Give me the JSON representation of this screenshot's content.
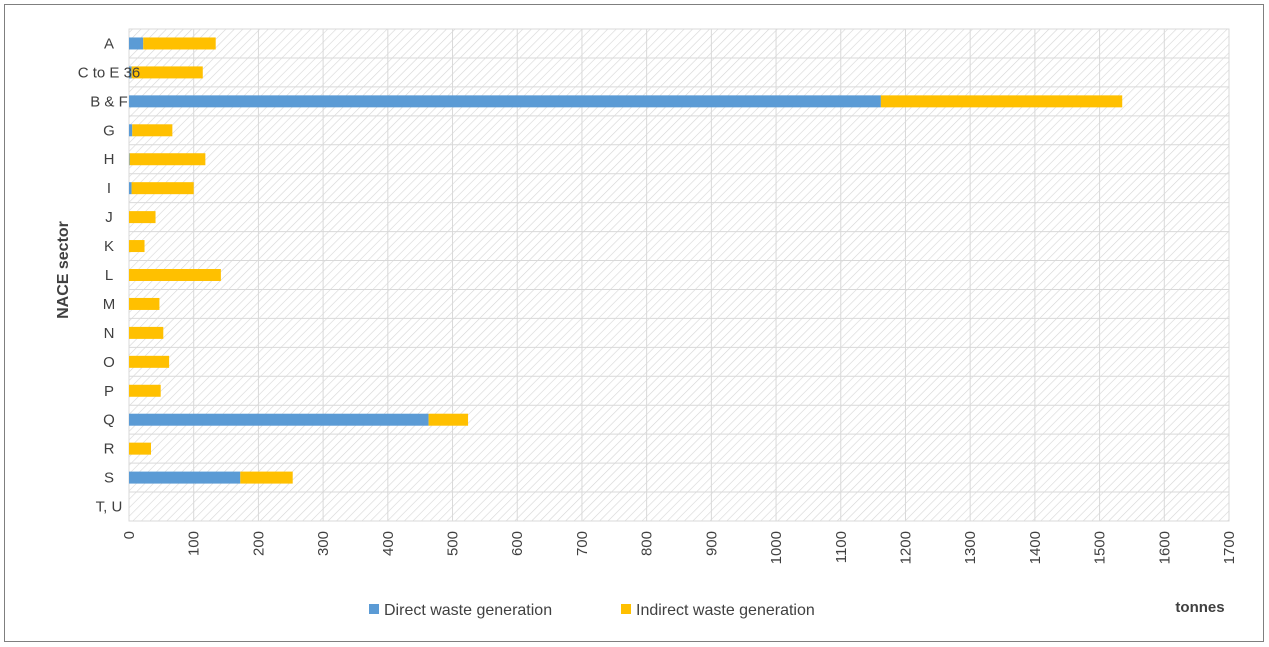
{
  "chart_data": {
    "type": "bar",
    "orientation": "horizontal",
    "stacked": true,
    "categories": [
      "A",
      "C to E 36",
      "B & F",
      "G",
      "H",
      "I",
      "J",
      "K",
      "L",
      "M",
      "N",
      "O",
      "P",
      "Q",
      "R",
      "S",
      "T, U"
    ],
    "series": [
      {
        "name": "Direct waste generation",
        "color": "#5b9bd5",
        "values": [
          22,
          4,
          1162,
          5,
          1,
          4,
          0,
          0,
          0,
          0,
          0,
          0,
          0,
          463,
          0,
          172,
          0
        ]
      },
      {
        "name": "Indirect waste generation",
        "color": "#ffc000",
        "values": [
          112,
          110,
          373,
          62,
          117,
          96,
          41,
          24,
          142,
          47,
          53,
          62,
          49,
          61,
          34,
          81,
          0
        ]
      }
    ],
    "xlabel": "tonnes",
    "ylabel": "NACE sector",
    "xlim": [
      0,
      1700
    ],
    "xticks": [
      0,
      100,
      200,
      300,
      400,
      500,
      600,
      700,
      800,
      900,
      1000,
      1100,
      1200,
      1300,
      1400,
      1500,
      1600,
      1700
    ],
    "legend_position": "bottom"
  }
}
